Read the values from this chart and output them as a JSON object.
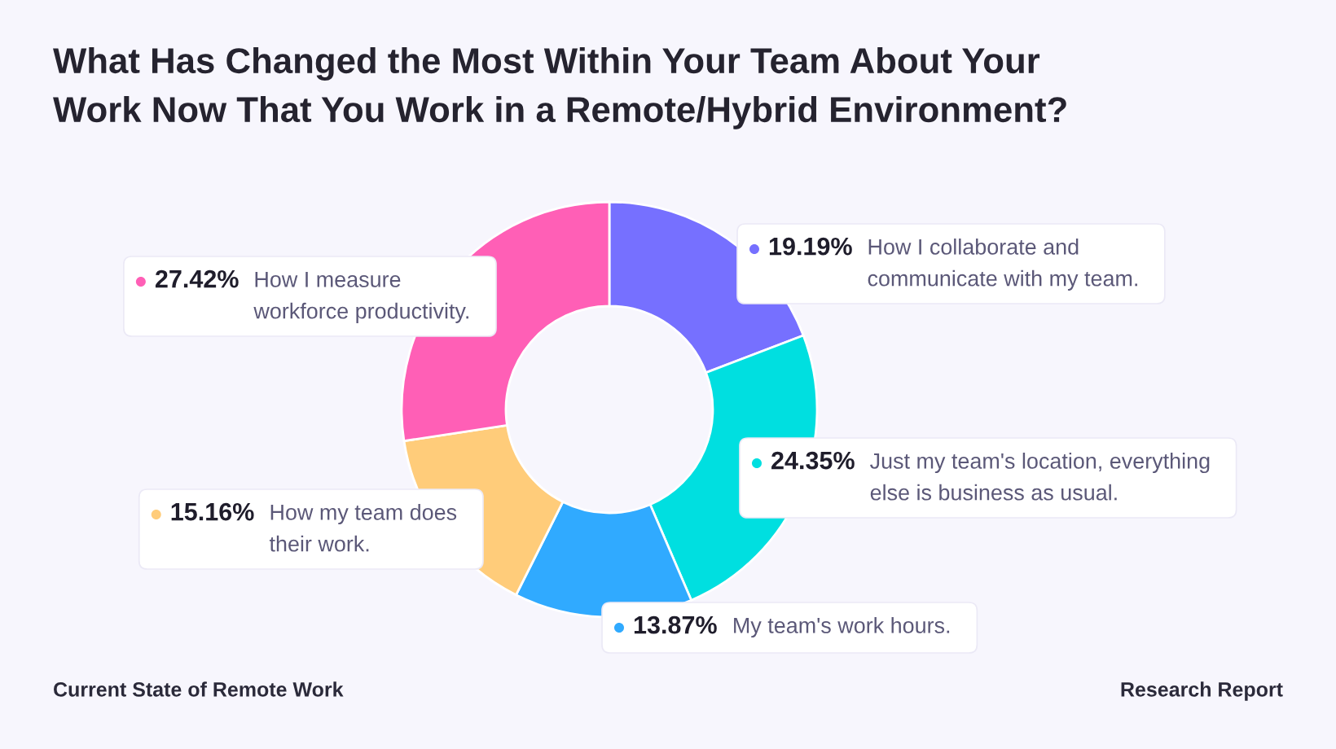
{
  "chart_data": {
    "type": "donut",
    "title": "What Has Changed the Most Within Your Team About Your\nWork Now That You Work in a Remote/Hybrid Environment?",
    "categories": [
      "How I collaborate and\ncommunicate with my team.",
      "Just my team's location, everything\nelse is business as usual.",
      "My team's work hours.",
      "How my team does\ntheir work.",
      "How I measure\nworkforce productivity."
    ],
    "values": [
      19.19,
      24.35,
      13.87,
      15.16,
      27.42
    ],
    "colors": [
      "#7670ff",
      "#00dfe0",
      "#30aaff",
      "#ffcc7a",
      "#ff5fb6"
    ],
    "value_labels": [
      "19.19%",
      "24.35%",
      "13.87%",
      "15.16%",
      "27.42%"
    ],
    "annotations": [
      "Current State of Remote Work",
      "Research Report"
    ]
  }
}
